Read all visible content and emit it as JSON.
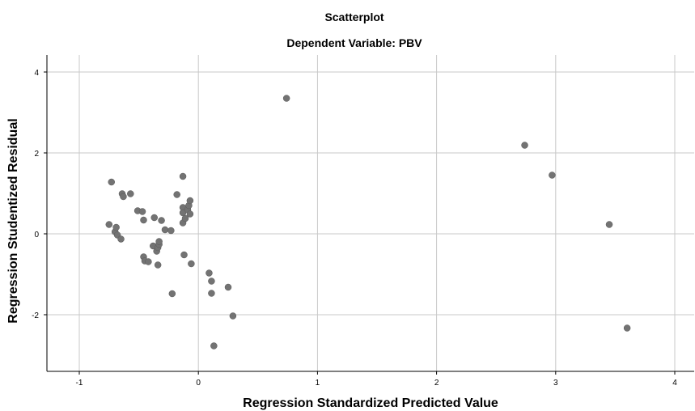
{
  "chart_data": {
    "type": "scatter",
    "title": "Scatterplot",
    "subtitle": "Dependent Variable: PBV",
    "xlabel": "Regression Standardized Predicted Value",
    "ylabel": "Regression Studentized Residual",
    "xlim": [
      -1.3,
      4.15
    ],
    "ylim": [
      -3.4,
      4.4
    ],
    "xticks": [
      "-1",
      "0",
      "1",
      "2",
      "3",
      "4"
    ],
    "yticks": [
      "-2",
      "0",
      "2",
      "4"
    ],
    "grid": true,
    "marker_color": "#737373",
    "points": [
      {
        "x": 0.74,
        "y": 3.35
      },
      {
        "x": 2.74,
        "y": 2.19
      },
      {
        "x": 2.97,
        "y": 1.45
      },
      {
        "x": 3.45,
        "y": 0.23
      },
      {
        "x": 3.6,
        "y": -2.33
      },
      {
        "x": -0.73,
        "y": 1.28
      },
      {
        "x": -0.75,
        "y": 0.23
      },
      {
        "x": -0.7,
        "y": 0.05
      },
      {
        "x": -0.68,
        "y": -0.03
      },
      {
        "x": -0.65,
        "y": -0.13
      },
      {
        "x": -0.69,
        "y": 0.16
      },
      {
        "x": -0.64,
        "y": 0.99
      },
      {
        "x": -0.63,
        "y": 0.92
      },
      {
        "x": -0.57,
        "y": 0.99
      },
      {
        "x": -0.51,
        "y": 0.57
      },
      {
        "x": -0.47,
        "y": 0.55
      },
      {
        "x": -0.46,
        "y": 0.34
      },
      {
        "x": -0.46,
        "y": -0.57
      },
      {
        "x": -0.45,
        "y": -0.67
      },
      {
        "x": -0.42,
        "y": -0.69
      },
      {
        "x": -0.38,
        "y": -0.3
      },
      {
        "x": -0.37,
        "y": 0.4
      },
      {
        "x": -0.35,
        "y": -0.43
      },
      {
        "x": -0.34,
        "y": -0.34
      },
      {
        "x": -0.33,
        "y": -0.26
      },
      {
        "x": -0.33,
        "y": -0.19
      },
      {
        "x": -0.34,
        "y": -0.77
      },
      {
        "x": -0.31,
        "y": 0.33
      },
      {
        "x": -0.28,
        "y": 0.1
      },
      {
        "x": -0.23,
        "y": 0.08
      },
      {
        "x": -0.22,
        "y": -1.48
      },
      {
        "x": -0.18,
        "y": 0.97
      },
      {
        "x": -0.13,
        "y": 1.42
      },
      {
        "x": -0.13,
        "y": 0.65
      },
      {
        "x": -0.13,
        "y": 0.52
      },
      {
        "x": -0.13,
        "y": 0.27
      },
      {
        "x": -0.12,
        "y": -0.52
      },
      {
        "x": -0.11,
        "y": 0.38
      },
      {
        "x": -0.09,
        "y": 0.6
      },
      {
        "x": -0.08,
        "y": 0.7
      },
      {
        "x": -0.07,
        "y": 0.82
      },
      {
        "x": -0.07,
        "y": 0.49
      },
      {
        "x": -0.06,
        "y": -0.74
      },
      {
        "x": 0.09,
        "y": -0.97
      },
      {
        "x": 0.11,
        "y": -1.17
      },
      {
        "x": 0.11,
        "y": -1.47
      },
      {
        "x": 0.13,
        "y": -2.77
      },
      {
        "x": 0.25,
        "y": -1.32
      },
      {
        "x": 0.29,
        "y": -2.03
      }
    ]
  }
}
